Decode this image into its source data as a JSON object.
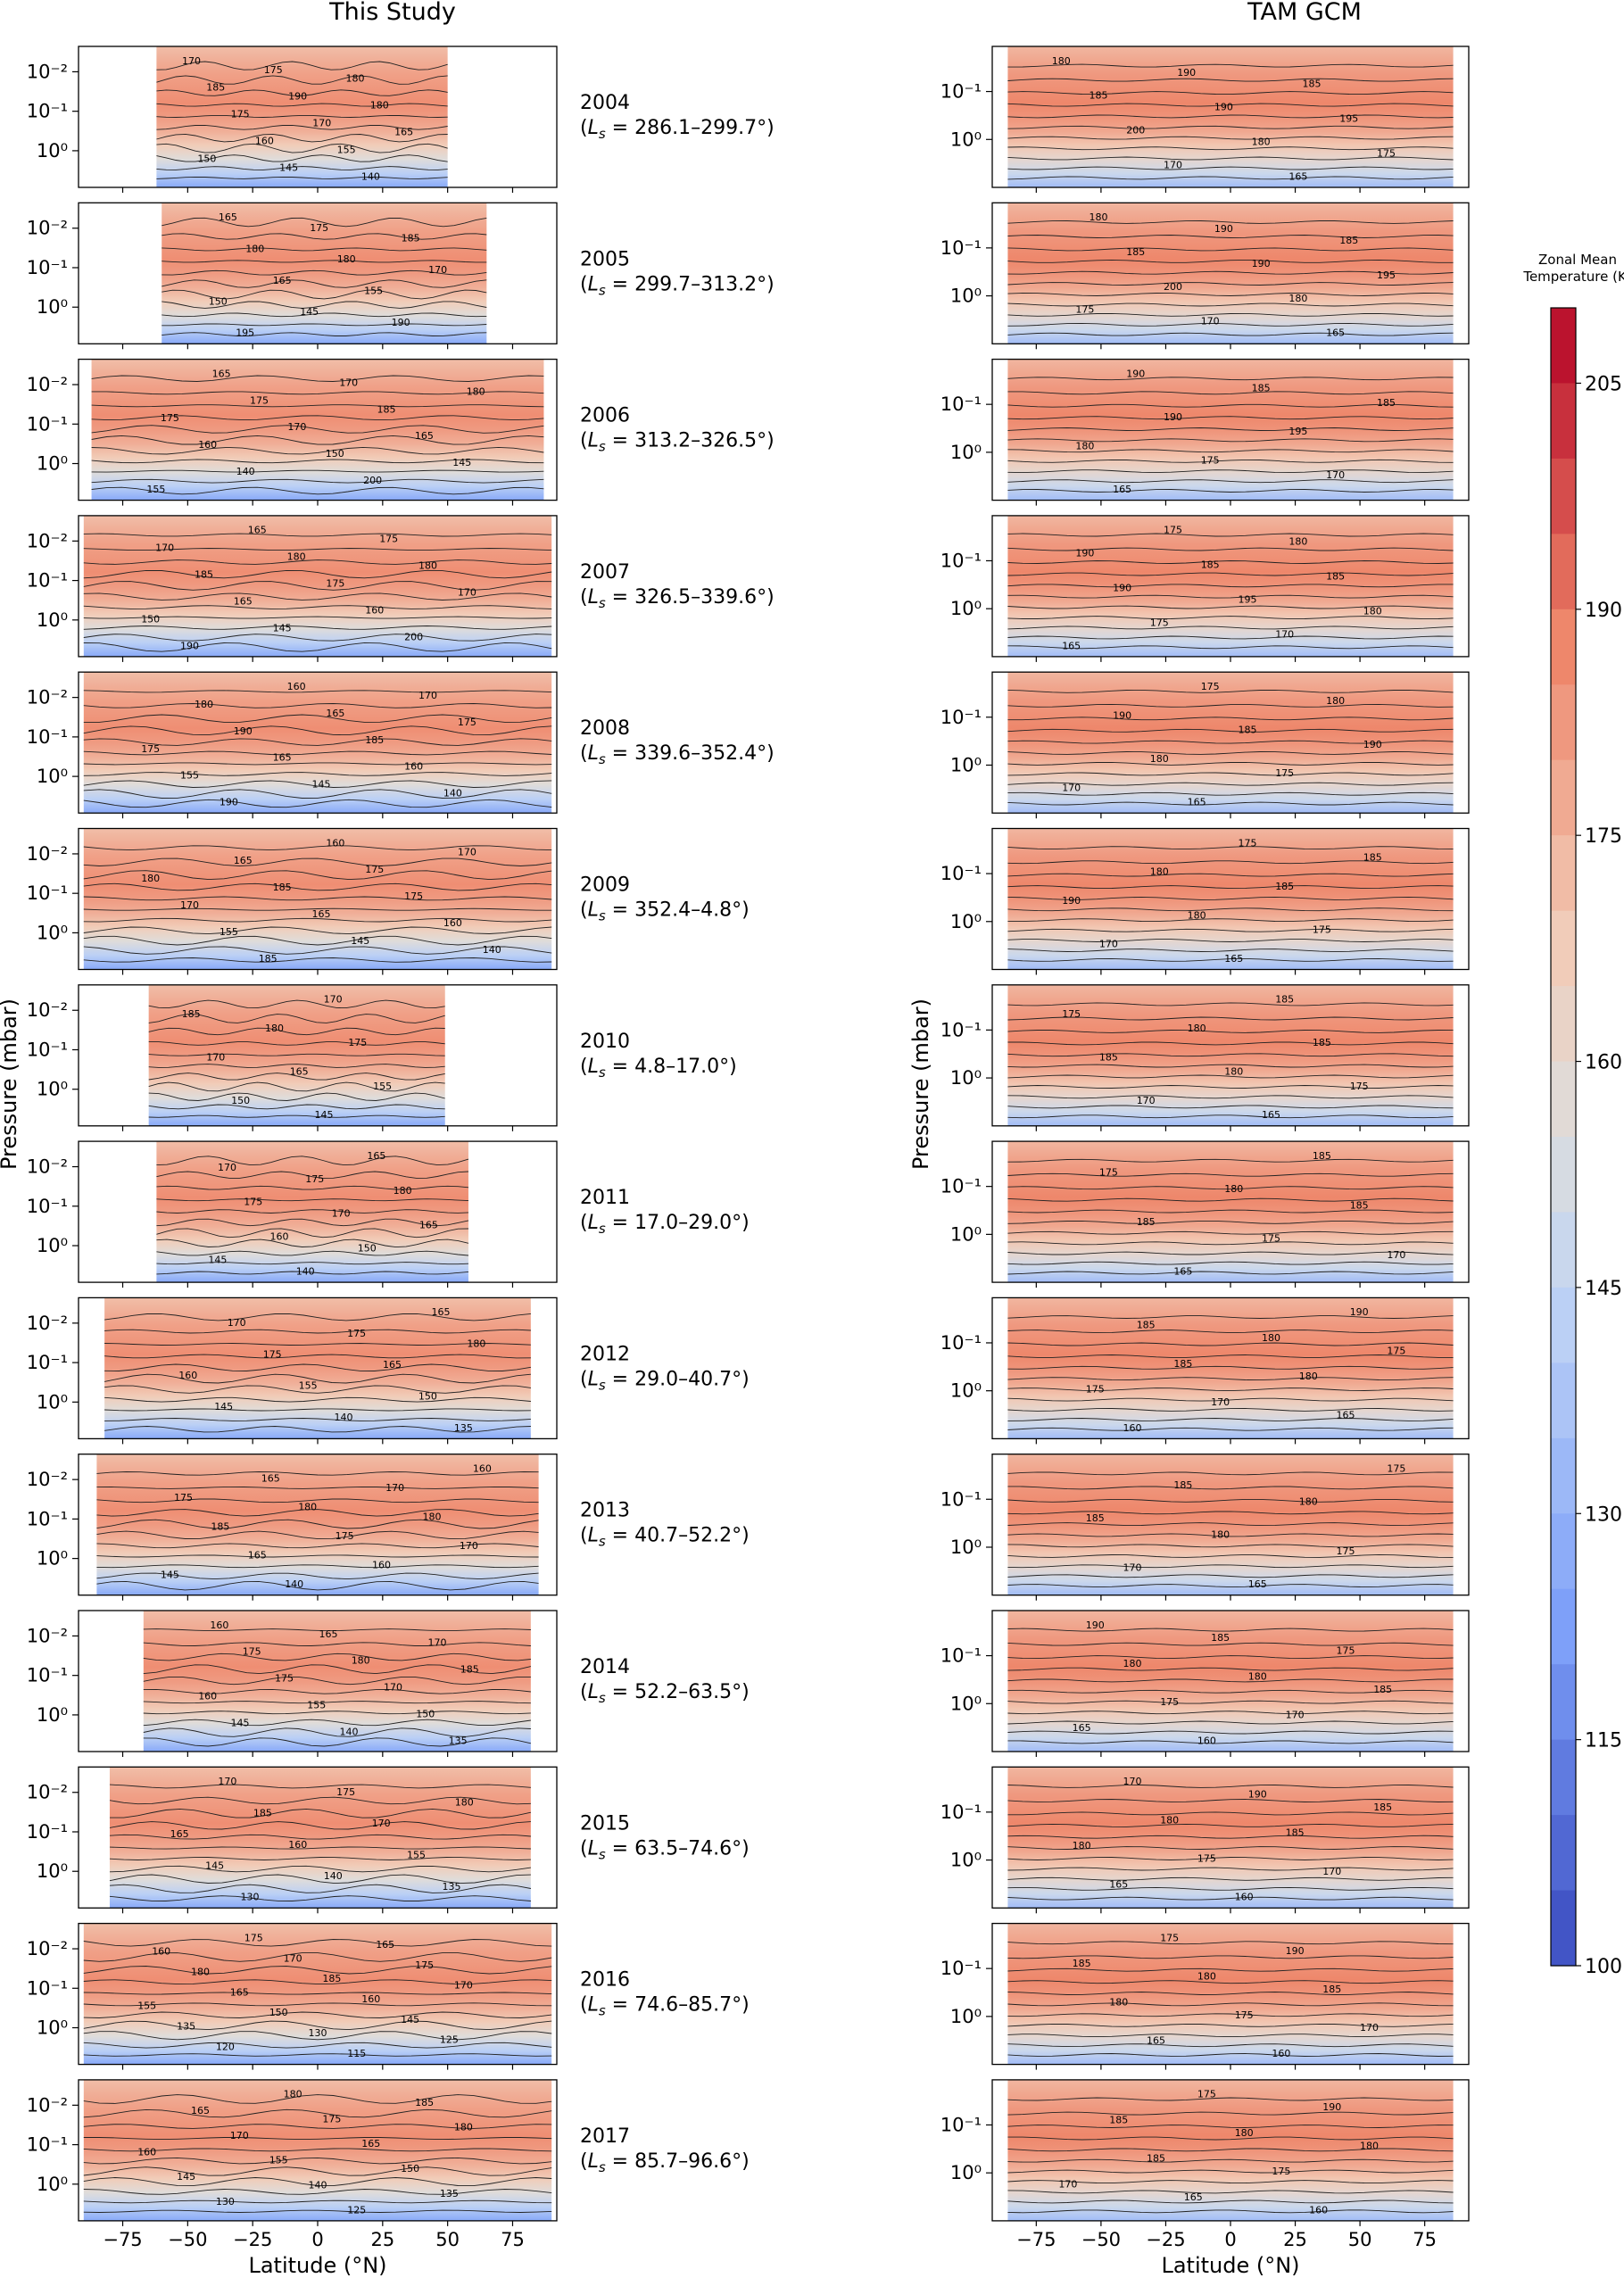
{
  "chart_data": {
    "type": "heatmap",
    "description_title_left": "This Study",
    "description_title_right": "TAM GCM",
    "left_ylabel": "Pressure (mbar)",
    "right_ylabel": "Pressure (mbar)",
    "xlabel": "Latitude (°N)",
    "xticks": [
      "−75",
      "−50",
      "−25",
      "0",
      "25",
      "50",
      "75"
    ],
    "xlim": [
      -90,
      90
    ],
    "left_yticks": [
      "10⁻²",
      "10⁻¹",
      "10⁰"
    ],
    "right_yticks": [
      "10⁻¹",
      "10⁰"
    ],
    "colorbar": {
      "title_line1": "Zonal Mean",
      "title_line2": "Temperature (K)",
      "min": 100,
      "max": 210,
      "step": 5,
      "ticks": [
        "205",
        "190",
        "175",
        "160",
        "145",
        "130",
        "115",
        "100"
      ],
      "tick_values": [
        205,
        190,
        175,
        160,
        145,
        130,
        115,
        100
      ]
    },
    "rows": [
      {
        "year": "2004",
        "ls": "286.1–299.7°)",
        "lat_range": [
          -62,
          50
        ],
        "left_labels": [
          "170",
          "175",
          "180",
          "185",
          "190",
          "180",
          "175",
          "170",
          "165",
          "160",
          "155",
          "150",
          "145",
          "140"
        ],
        "right_labels": [
          "180",
          "190",
          "185",
          "185",
          "190",
          "195",
          "200",
          "180",
          "175",
          "170",
          "165"
        ]
      },
      {
        "year": "2005",
        "ls": "299.7–313.2°)",
        "lat_range": [
          -60,
          65
        ],
        "left_labels": [
          "165",
          "175",
          "185",
          "180",
          "180",
          "170",
          "165",
          "155",
          "150",
          "145",
          "190",
          "195"
        ],
        "right_labels": [
          "180",
          "190",
          "185",
          "185",
          "190",
          "195",
          "200",
          "180",
          "175",
          "170",
          "165"
        ]
      },
      {
        "year": "2006",
        "ls": "313.2–326.5°)",
        "lat_range": [
          -87,
          87
        ],
        "left_labels": [
          "165",
          "170",
          "180",
          "175",
          "185",
          "175",
          "170",
          "165",
          "160",
          "150",
          "145",
          "140",
          "200",
          "155"
        ],
        "right_labels": [
          "190",
          "185",
          "185",
          "190",
          "195",
          "180",
          "175",
          "170",
          "165"
        ]
      },
      {
        "year": "2007",
        "ls": "326.5–339.6°)",
        "lat_range": [
          -90,
          90
        ],
        "left_labels": [
          "165",
          "175",
          "170",
          "180",
          "180",
          "185",
          "175",
          "170",
          "165",
          "160",
          "150",
          "145",
          "200",
          "190"
        ],
        "right_labels": [
          "175",
          "180",
          "190",
          "185",
          "185",
          "190",
          "195",
          "180",
          "175",
          "170",
          "165"
        ]
      },
      {
        "year": "2008",
        "ls": "339.6–352.4°)",
        "lat_range": [
          -90,
          90
        ],
        "left_labels": [
          "160",
          "170",
          "180",
          "165",
          "175",
          "190",
          "185",
          "175",
          "165",
          "160",
          "155",
          "145",
          "140",
          "190"
        ],
        "right_labels": [
          "175",
          "180",
          "190",
          "185",
          "190",
          "180",
          "175",
          "170",
          "165"
        ]
      },
      {
        "year": "2009",
        "ls": "352.4–4.8°)",
        "lat_range": [
          -90,
          90
        ],
        "left_labels": [
          "160",
          "170",
          "165",
          "175",
          "180",
          "185",
          "175",
          "170",
          "165",
          "160",
          "155",
          "145",
          "140",
          "185"
        ],
        "right_labels": [
          "175",
          "185",
          "180",
          "185",
          "190",
          "180",
          "175",
          "170",
          "165"
        ]
      },
      {
        "year": "2010",
        "ls": "4.8–17.0°)",
        "lat_range": [
          -65,
          49
        ],
        "left_labels": [
          "170",
          "185",
          "180",
          "175",
          "170",
          "165",
          "155",
          "150",
          "145"
        ],
        "right_labels": [
          "185",
          "175",
          "180",
          "185",
          "185",
          "180",
          "175",
          "170",
          "165"
        ]
      },
      {
        "year": "2011",
        "ls": "17.0–29.0°)",
        "lat_range": [
          -62,
          58
        ],
        "left_labels": [
          "165",
          "170",
          "175",
          "180",
          "175",
          "170",
          "165",
          "160",
          "150",
          "145",
          "140"
        ],
        "right_labels": [
          "185",
          "175",
          "180",
          "185",
          "185",
          "175",
          "170",
          "165"
        ]
      },
      {
        "year": "2012",
        "ls": "29.0–40.7°)",
        "lat_range": [
          -82,
          82
        ],
        "left_labels": [
          "165",
          "170",
          "175",
          "180",
          "175",
          "165",
          "160",
          "155",
          "150",
          "145",
          "140",
          "135"
        ],
        "right_labels": [
          "190",
          "185",
          "180",
          "175",
          "185",
          "180",
          "175",
          "170",
          "165",
          "160"
        ]
      },
      {
        "year": "2013",
        "ls": "40.7–52.2°)",
        "lat_range": [
          -85,
          85
        ],
        "left_labels": [
          "160",
          "165",
          "170",
          "175",
          "180",
          "180",
          "185",
          "175",
          "170",
          "165",
          "160",
          "145",
          "140"
        ],
        "right_labels": [
          "175",
          "185",
          "180",
          "185",
          "180",
          "175",
          "170",
          "165"
        ]
      },
      {
        "year": "2014",
        "ls": "52.2–63.5°)",
        "lat_range": [
          -67,
          82
        ],
        "left_labels": [
          "160",
          "165",
          "170",
          "175",
          "180",
          "185",
          "175",
          "170",
          "160",
          "155",
          "150",
          "145",
          "140",
          "135"
        ],
        "right_labels": [
          "190",
          "185",
          "175",
          "180",
          "180",
          "185",
          "175",
          "170",
          "165",
          "160"
        ]
      },
      {
        "year": "2015",
        "ls": "63.5–74.6°)",
        "lat_range": [
          -80,
          82
        ],
        "left_labels": [
          "170",
          "175",
          "180",
          "185",
          "170",
          "165",
          "160",
          "155",
          "145",
          "140",
          "135",
          "130"
        ],
        "right_labels": [
          "170",
          "190",
          "185",
          "180",
          "185",
          "180",
          "175",
          "170",
          "165",
          "160"
        ]
      },
      {
        "year": "2016",
        "ls": "74.6–85.7°)",
        "lat_range": [
          -90,
          90
        ],
        "left_labels": [
          "175",
          "165",
          "160",
          "170",
          "175",
          "180",
          "185",
          "170",
          "165",
          "160",
          "155",
          "150",
          "145",
          "135",
          "130",
          "125",
          "120",
          "115"
        ],
        "right_labels": [
          "175",
          "190",
          "185",
          "180",
          "185",
          "180",
          "175",
          "170",
          "165",
          "160"
        ]
      },
      {
        "year": "2017",
        "ls": "85.7–96.6°)",
        "lat_range": [
          -90,
          90
        ],
        "left_labels": [
          "180",
          "185",
          "165",
          "175",
          "180",
          "170",
          "165",
          "160",
          "155",
          "150",
          "145",
          "140",
          "135",
          "130",
          "125"
        ],
        "right_labels": [
          "175",
          "190",
          "185",
          "180",
          "180",
          "185",
          "175",
          "170",
          "165",
          "160"
        ]
      }
    ]
  }
}
